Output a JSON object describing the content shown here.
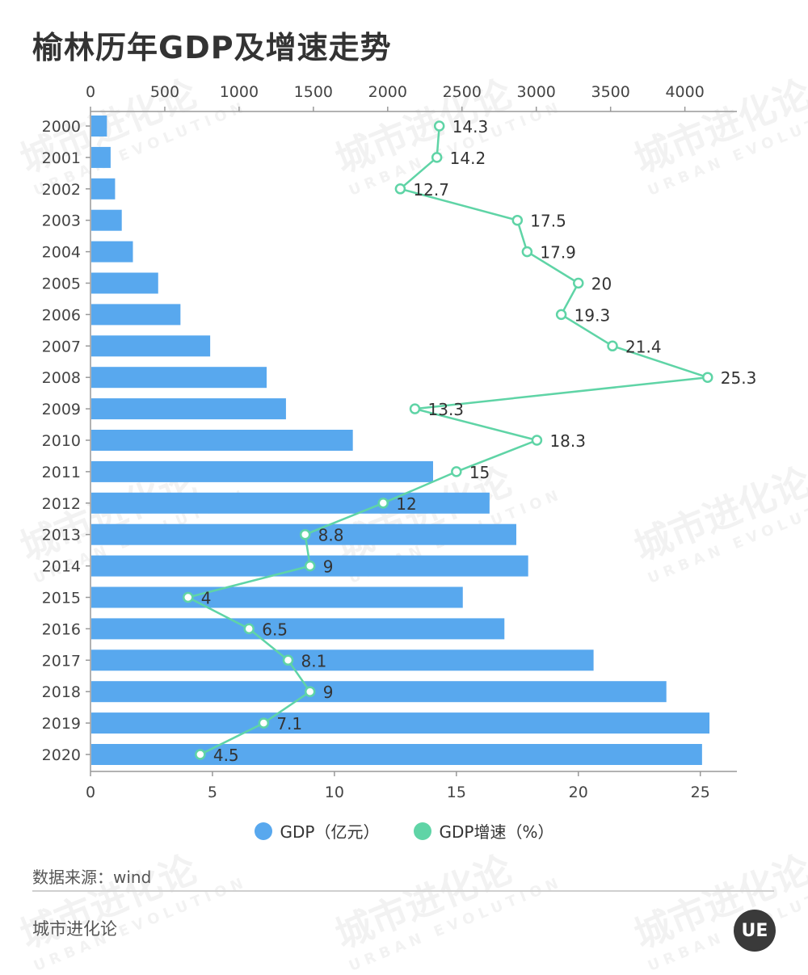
{
  "title": "榆林历年GDP及增速走势",
  "legend": [
    {
      "label": "GDP（亿元）",
      "color": "#58a8ee"
    },
    {
      "label": "GDP增速（%）",
      "color": "#5fd4a6"
    }
  ],
  "source": "数据来源：wind",
  "brand": "城市进化论",
  "logo_text": "UE",
  "watermark": {
    "cn": "城市进化论",
    "en": "URBAN EVOLUTION"
  },
  "chart_data": {
    "type": "bar",
    "orientation": "horizontal",
    "categories": [
      "2000",
      "2001",
      "2002",
      "2003",
      "2004",
      "2005",
      "2006",
      "2007",
      "2008",
      "2009",
      "2010",
      "2011",
      "2012",
      "2013",
      "2014",
      "2015",
      "2016",
      "2017",
      "2018",
      "2019",
      "2020"
    ],
    "gdp_axis": {
      "ticks": [
        0,
        500,
        1000,
        1500,
        2000,
        2500,
        3000,
        3500,
        4000
      ],
      "range": [
        0,
        4350
      ],
      "position": "top"
    },
    "growth_axis": {
      "ticks": [
        0,
        5,
        10,
        15,
        20,
        25
      ],
      "range": [
        0,
        26.5
      ],
      "position": "bottom"
    },
    "series": [
      {
        "name": "GDP（亿元）",
        "type": "bar",
        "axis": "top",
        "color": "#58a8ee",
        "values": [
          105,
          130,
          160,
          205,
          280,
          450,
          600,
          800,
          1180,
          1310,
          1760,
          2300,
          2680,
          2860,
          2940,
          2500,
          2780,
          3380,
          3870,
          4160,
          4110
        ]
      },
      {
        "name": "GDP增速（%）",
        "type": "line",
        "axis": "bottom",
        "color": "#5fd4a6",
        "values": [
          14.3,
          14.2,
          12.7,
          17.5,
          17.9,
          20,
          19.3,
          21.4,
          25.3,
          13.3,
          18.3,
          15,
          12,
          8.8,
          9,
          4,
          6.5,
          8.1,
          9,
          7.1,
          4.5
        ],
        "labels": [
          "14.3",
          "14.2",
          "12.7",
          "17.5",
          "17.9",
          "20",
          "19.3",
          "21.4",
          "25.3",
          "13.3",
          "18.3",
          "15",
          "12",
          "8.8",
          "9",
          "4",
          "6.5",
          "8.1",
          "9",
          "7.1",
          "4.5"
        ]
      }
    ],
    "legend_position": "bottom",
    "grid": false
  }
}
